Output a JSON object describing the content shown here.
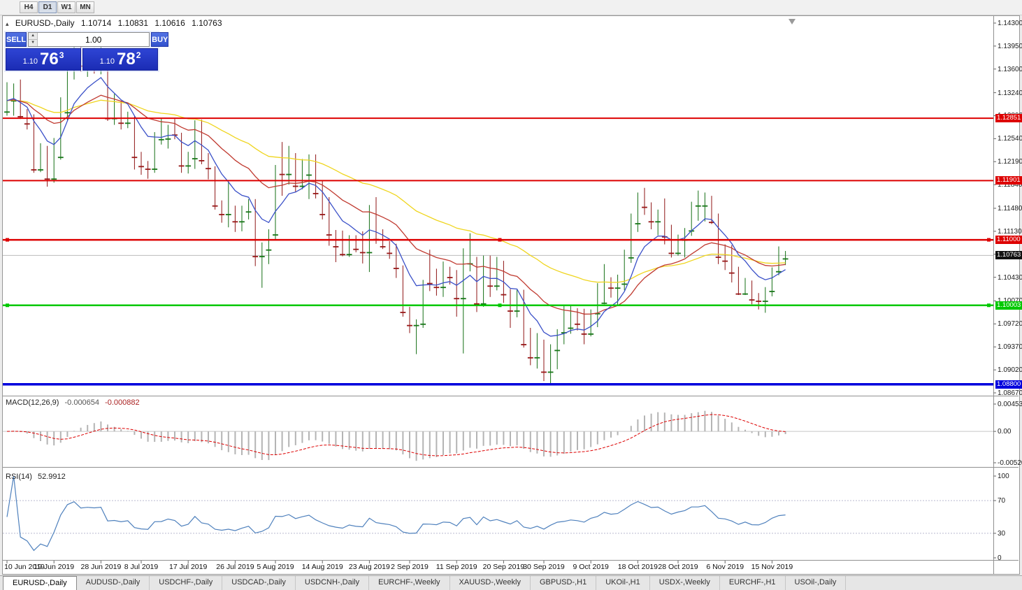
{
  "toolbar": {
    "timeframes": [
      "H4",
      "D1",
      "W1",
      "MN"
    ],
    "active": "D1"
  },
  "chart_header": {
    "toggle_icon": "▴",
    "symbol_label": "EURUSD-,Daily",
    "open": "1.10714",
    "high": "1.10831",
    "low": "1.10616",
    "close": "1.10763"
  },
  "trade_panel": {
    "sell_label": "SELL",
    "buy_label": "BUY",
    "lot_value": "1.00",
    "bid": {
      "big": "1.10",
      "pips": "76",
      "point": "3"
    },
    "ask": {
      "big": "1.10",
      "pips": "78",
      "point": "2"
    }
  },
  "price_axis": {
    "ticks": [
      {
        "text": "1.14300",
        "price": 1.143
      },
      {
        "text": "1.13950",
        "price": 1.1395
      },
      {
        "text": "1.13600",
        "price": 1.136
      },
      {
        "text": "1.13240",
        "price": 1.1324
      },
      {
        "text": "1.12890",
        "price": 1.1289
      },
      {
        "text": "1.12540",
        "price": 1.1254
      },
      {
        "text": "1.12190",
        "price": 1.1219
      },
      {
        "text": "1.11840",
        "price": 1.1184
      },
      {
        "text": "1.11480",
        "price": 1.1148
      },
      {
        "text": "1.11130",
        "price": 1.1113
      },
      {
        "text": "1.10780",
        "price": 1.1078
      },
      {
        "text": "1.10430",
        "price": 1.1043
      },
      {
        "text": "1.10070",
        "price": 1.1007
      },
      {
        "text": "1.09720",
        "price": 1.0972
      },
      {
        "text": "1.09370",
        "price": 1.0937
      },
      {
        "text": "1.09020",
        "price": 1.0902
      },
      {
        "text": "1.08670",
        "price": 1.0867
      }
    ]
  },
  "hlines": [
    {
      "label": "1.12851",
      "price": 1.12851,
      "color": "#dd0000",
      "width": 2,
      "selected": false
    },
    {
      "label": "1.11901",
      "price": 1.11901,
      "color": "#dd0000",
      "width": 2,
      "selected": false
    },
    {
      "label": "1.11000",
      "price": 1.11,
      "color": "#dd0000",
      "width": 2.5,
      "selected": true
    },
    {
      "label": "1.10003",
      "price": 1.10003,
      "color": "#00c800",
      "width": 2.5,
      "selected": true
    },
    {
      "label": "1.08800",
      "price": 1.088,
      "color": "#0000dd",
      "width": 3.5,
      "selected": false
    }
  ],
  "current_price": {
    "label": "1.10763",
    "price": 1.10763,
    "badge_color": "#111111",
    "line_color": "#bbbbbb"
  },
  "macd": {
    "label": "MACD(12,26,9)",
    "value_main": "-0.000654",
    "value_signal": "-0.000882",
    "axis": [
      {
        "text": "0.0045361",
        "value": 0.0045361
      },
      {
        "text": "0.00",
        "value": 0
      },
      {
        "text": "-0.0052051",
        "value": -0.0052051
      }
    ],
    "scale_max": 0.0045361,
    "scale_min": -0.0052051,
    "histogram_color": "#b4b4b4",
    "signal_color": "#dd0000",
    "params": {
      "fast": 12,
      "slow": 26,
      "signal": 9
    }
  },
  "rsi": {
    "label": "RSI(14)",
    "value": "52.9912",
    "period": 14,
    "color": "#4f81bd",
    "axis": [
      {
        "text": "100",
        "value": 100
      },
      {
        "text": "70",
        "value": 70
      },
      {
        "text": "30",
        "value": 30
      },
      {
        "text": "0",
        "value": 0
      }
    ],
    "levels": [
      70,
      30
    ]
  },
  "date_axis": [
    {
      "text": "10 Jun 2019",
      "index": 0
    },
    {
      "text": "19 Jun 2019",
      "index": 7
    },
    {
      "text": "28 Jun 2019",
      "index": 14
    },
    {
      "text": "8 Jul 2019",
      "index": 20
    },
    {
      "text": "17 Jul 2019",
      "index": 27
    },
    {
      "text": "26 Jul 2019",
      "index": 34
    },
    {
      "text": "5 Aug 2019",
      "index": 40
    },
    {
      "text": "14 Aug 2019",
      "index": 47
    },
    {
      "text": "23 Aug 2019",
      "index": 54
    },
    {
      "text": "2 Sep 2019",
      "index": 60
    },
    {
      "text": "11 Sep 2019",
      "index": 67
    },
    {
      "text": "20 Sep 2019",
      "index": 74
    },
    {
      "text": "30 Sep 2019",
      "index": 80
    },
    {
      "text": "9 Oct 2019",
      "index": 87
    },
    {
      "text": "18 Oct 2019",
      "index": 94
    },
    {
      "text": "28 Oct 2019",
      "index": 100
    },
    {
      "text": "6 Nov 2019",
      "index": 107
    },
    {
      "text": "15 Nov 2019",
      "index": 114
    }
  ],
  "tabs": [
    {
      "label": "EURUSD-,Daily",
      "active": true
    },
    {
      "label": "AUDUSD-,Daily",
      "active": false
    },
    {
      "label": "USDCHF-,Daily",
      "active": false
    },
    {
      "label": "USDCAD-,Daily",
      "active": false
    },
    {
      "label": "USDCNH-,Daily",
      "active": false
    },
    {
      "label": "EURCHF-,Weekly",
      "active": false
    },
    {
      "label": "XAUUSD-,Weekly",
      "active": false
    },
    {
      "label": "GBPUSD-,H1",
      "active": false
    },
    {
      "label": "UKOil-,H1",
      "active": false
    },
    {
      "label": "USDX-,Weekly",
      "active": false
    },
    {
      "label": "EURCHF-,H1",
      "active": false
    },
    {
      "label": "USOil-,Daily",
      "active": false
    }
  ],
  "chart_data": {
    "type": "candlestick",
    "symbol": "EURUSD",
    "timeframe": "Daily",
    "first_date": "2019-06-10",
    "last_date": "2019-11-19",
    "price_range": [
      1.0867,
      1.143
    ],
    "colors": {
      "up_body": "#2db52d",
      "up_border": "#156f15",
      "down_body": "#e03030",
      "down_border": "#8f1515"
    },
    "moving_averages": [
      {
        "period": 45,
        "method": "ema",
        "color": "#efd51e"
      },
      {
        "period": 21,
        "method": "ema",
        "color": "#c03a30"
      },
      {
        "period": 8,
        "method": "ema",
        "color": "#3a50c8"
      }
    ],
    "fields": [
      "open",
      "high",
      "low",
      "close"
    ],
    "candles": [
      [
        1.1295,
        1.134,
        1.1289,
        1.1312
      ],
      [
        1.1312,
        1.1338,
        1.1289,
        1.1326
      ],
      [
        1.1326,
        1.1344,
        1.1284,
        1.1288
      ],
      [
        1.1288,
        1.1299,
        1.1268,
        1.1277
      ],
      [
        1.1277,
        1.1291,
        1.1202,
        1.1207
      ],
      [
        1.1207,
        1.1247,
        1.1203,
        1.1218
      ],
      [
        1.1218,
        1.1243,
        1.1181,
        1.1193
      ],
      [
        1.1193,
        1.1255,
        1.1187,
        1.1226
      ],
      [
        1.1226,
        1.1317,
        1.1222,
        1.1294
      ],
      [
        1.1294,
        1.1378,
        1.1282,
        1.1369
      ],
      [
        1.1369,
        1.1406,
        1.1344,
        1.1399
      ],
      [
        1.1399,
        1.1412,
        1.1356,
        1.1365
      ],
      [
        1.1365,
        1.1391,
        1.1348,
        1.1371
      ],
      [
        1.1371,
        1.1392,
        1.1353,
        1.1368
      ],
      [
        1.1368,
        1.1394,
        1.1352,
        1.1373
      ],
      [
        1.1373,
        1.1377,
        1.1281,
        1.1285
      ],
      [
        1.1285,
        1.1322,
        1.1275,
        1.1288
      ],
      [
        1.1288,
        1.1312,
        1.1268,
        1.1278
      ],
      [
        1.1278,
        1.1295,
        1.127,
        1.1284
      ],
      [
        1.1284,
        1.1288,
        1.1207,
        1.1226
      ],
      [
        1.1226,
        1.1234,
        1.1199,
        1.1212
      ],
      [
        1.1212,
        1.122,
        1.1193,
        1.1208
      ],
      [
        1.1208,
        1.1264,
        1.1202,
        1.1253
      ],
      [
        1.1253,
        1.1285,
        1.1245,
        1.1254
      ],
      [
        1.1254,
        1.1275,
        1.1239,
        1.127
      ],
      [
        1.127,
        1.1284,
        1.1253,
        1.126
      ],
      [
        1.126,
        1.1263,
        1.1202,
        1.1213
      ],
      [
        1.1213,
        1.1234,
        1.1201,
        1.1224
      ],
      [
        1.1224,
        1.1282,
        1.1208,
        1.1277
      ],
      [
        1.1277,
        1.1283,
        1.1215,
        1.1221
      ],
      [
        1.1221,
        1.1232,
        1.1192,
        1.1209
      ],
      [
        1.1209,
        1.1212,
        1.1146,
        1.1152
      ],
      [
        1.1152,
        1.116,
        1.1126,
        1.1139
      ],
      [
        1.1139,
        1.1188,
        1.1119,
        1.1146
      ],
      [
        1.1146,
        1.1152,
        1.1112,
        1.1128
      ],
      [
        1.1128,
        1.1152,
        1.1113,
        1.1143
      ],
      [
        1.1143,
        1.1162,
        1.1131,
        1.1155
      ],
      [
        1.1155,
        1.1162,
        1.106,
        1.1075
      ],
      [
        1.1075,
        1.1096,
        1.1027,
        1.1085
      ],
      [
        1.1085,
        1.1116,
        1.1063,
        1.1108
      ],
      [
        1.1108,
        1.1214,
        1.1101,
        1.1203
      ],
      [
        1.1203,
        1.1249,
        1.1167,
        1.12
      ],
      [
        1.12,
        1.1243,
        1.1184,
        1.1219
      ],
      [
        1.1219,
        1.1232,
        1.1173,
        1.1182
      ],
      [
        1.1182,
        1.1223,
        1.1177,
        1.1199
      ],
      [
        1.1199,
        1.123,
        1.1162,
        1.1213
      ],
      [
        1.1213,
        1.123,
        1.1163,
        1.1171
      ],
      [
        1.1171,
        1.119,
        1.1131,
        1.1139
      ],
      [
        1.1139,
        1.1165,
        1.1091,
        1.1108
      ],
      [
        1.1108,
        1.1115,
        1.1066,
        1.109
      ],
      [
        1.109,
        1.1114,
        1.1075,
        1.1078
      ],
      [
        1.1078,
        1.1107,
        1.1074,
        1.11
      ],
      [
        1.11,
        1.1107,
        1.1081,
        1.1086
      ],
      [
        1.1086,
        1.1113,
        1.1064,
        1.1081
      ],
      [
        1.1081,
        1.1153,
        1.1051,
        1.1144
      ],
      [
        1.1138,
        1.1165,
        1.1094,
        1.1101
      ],
      [
        1.1101,
        1.1116,
        1.1086,
        1.109
      ],
      [
        1.109,
        1.1098,
        1.1071,
        1.108
      ],
      [
        1.108,
        1.1094,
        1.1042,
        1.1057
      ],
      [
        1.1057,
        1.1061,
        1.0983,
        1.099
      ],
      [
        1.099,
        1.0998,
        1.0958,
        1.097
      ],
      [
        1.097,
        1.0979,
        1.0926,
        1.0972
      ],
      [
        1.0972,
        1.1039,
        1.0966,
        1.1035
      ],
      [
        1.1035,
        1.1085,
        1.1022,
        1.1034
      ],
      [
        1.1034,
        1.1056,
        1.1015,
        1.1028
      ],
      [
        1.1028,
        1.1067,
        1.1013,
        1.1047
      ],
      [
        1.1047,
        1.1059,
        1.1032,
        1.1043
      ],
      [
        1.1043,
        1.1054,
        1.0983,
        1.1011
      ],
      [
        1.1011,
        1.1087,
        1.0927,
        1.1064
      ],
      [
        1.1064,
        1.111,
        1.1052,
        1.1073
      ],
      [
        1.1068,
        1.1074,
        1.099,
        1.1003
      ],
      [
        1.1003,
        1.1076,
        1.0998,
        1.1072
      ],
      [
        1.1072,
        1.1076,
        1.1013,
        1.103
      ],
      [
        1.103,
        1.1074,
        1.1023,
        1.1042
      ],
      [
        1.1042,
        1.1068,
        1.1004,
        1.1017
      ],
      [
        1.1017,
        1.1025,
        1.0966,
        1.0992
      ],
      [
        1.0992,
        1.1024,
        1.0982,
        1.1021
      ],
      [
        1.1021,
        1.1024,
        1.0936,
        1.0941
      ],
      [
        1.0941,
        1.0966,
        1.0909,
        1.0921
      ],
      [
        1.0921,
        1.0958,
        1.0904,
        1.0939
      ],
      [
        1.0939,
        1.0948,
        1.0885,
        1.0899
      ],
      [
        1.0899,
        1.0941,
        1.0879,
        1.0932
      ],
      [
        1.0932,
        1.0964,
        1.0903,
        1.0959
      ],
      [
        1.0959,
        1.0999,
        1.0941,
        1.0966
      ],
      [
        1.0966,
        1.0999,
        1.0957,
        1.0979
      ],
      [
        1.0979,
        1.0996,
        1.0962,
        1.0972
      ],
      [
        1.0972,
        1.0995,
        1.0941,
        1.0957
      ],
      [
        1.0957,
        1.0994,
        1.0953,
        1.0988
      ],
      [
        1.0988,
        1.1034,
        1.0967,
        1.1004
      ],
      [
        1.1004,
        1.1063,
        1.1002,
        1.1042
      ],
      [
        1.1042,
        1.1043,
        1.1012,
        1.1027
      ],
      [
        1.1027,
        1.1047,
        1.1001,
        1.1033
      ],
      [
        1.1033,
        1.1085,
        1.1023,
        1.1073
      ],
      [
        1.1073,
        1.114,
        1.1065,
        1.1125
      ],
      [
        1.1125,
        1.1172,
        1.1112,
        1.117
      ],
      [
        1.117,
        1.1179,
        1.1138,
        1.115
      ],
      [
        1.115,
        1.1157,
        1.1116,
        1.1128
      ],
      [
        1.1128,
        1.1146,
        1.1107,
        1.1133
      ],
      [
        1.1133,
        1.1163,
        1.1093,
        1.1105
      ],
      [
        1.1105,
        1.1123,
        1.1073,
        1.108
      ],
      [
        1.108,
        1.1108,
        1.1076,
        1.11
      ],
      [
        1.11,
        1.1118,
        1.1073,
        1.1114
      ],
      [
        1.1114,
        1.1158,
        1.1106,
        1.1152
      ],
      [
        1.1152,
        1.1175,
        1.1129,
        1.1152
      ],
      [
        1.1152,
        1.1172,
        1.1128,
        1.1166
      ],
      [
        1.1166,
        1.1167,
        1.1124,
        1.1127
      ],
      [
        1.1127,
        1.114,
        1.1063,
        1.1074
      ],
      [
        1.1074,
        1.1093,
        1.1054,
        1.1068
      ],
      [
        1.1068,
        1.1092,
        1.1035,
        1.105
      ],
      [
        1.105,
        1.1059,
        1.1016,
        1.1018
      ],
      [
        1.1018,
        1.1042,
        1.1016,
        1.1034
      ],
      [
        1.1034,
        1.1038,
        1.1002,
        1.1009
      ],
      [
        1.1009,
        1.1019,
        1.0994,
        1.1007
      ],
      [
        1.1007,
        1.1028,
        1.0989,
        1.1022
      ],
      [
        1.1022,
        1.1058,
        1.1014,
        1.1052
      ],
      [
        1.1052,
        1.109,
        1.1046,
        1.1071
      ],
      [
        1.10714,
        1.10831,
        1.10616,
        1.10763
      ]
    ]
  }
}
